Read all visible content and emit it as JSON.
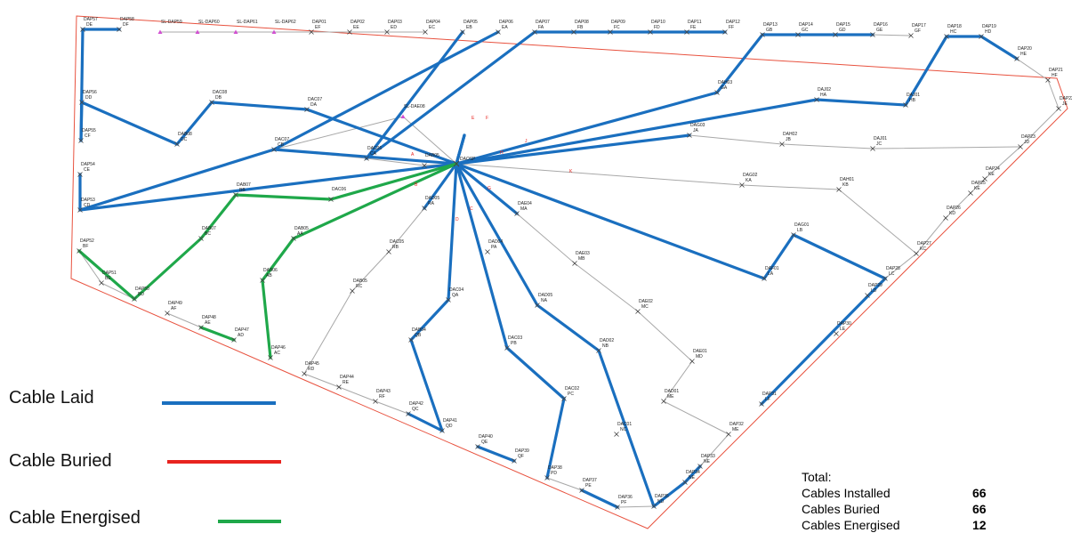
{
  "legend": {
    "laid": "Cable Laid",
    "buried": "Cable Buried",
    "energised": "Cable Energised"
  },
  "totals": {
    "title": "Total:",
    "installed_label": "Cables Installed",
    "installed_value": "66",
    "buried_label": "Cables Buried",
    "buried_value": "66",
    "energised_label": "Cables Energised",
    "energised_value": "12"
  },
  "colors": {
    "laid": "#1a6fbf",
    "buried": "#e8231f",
    "energised": "#1fa84a",
    "unlaid": "#a8a8a8",
    "boundary": "#e8523f",
    "marker": "#444444",
    "sl_marker": "#d24fd2"
  },
  "hub": {
    "name": "DAOSP"
  },
  "nodes": [
    {
      "n": "DAP57",
      "c": "DE"
    },
    {
      "n": "DAP58",
      "c": "DF"
    },
    {
      "n": "SL-DAP59",
      "c": ""
    },
    {
      "n": "SL-DAP60",
      "c": ""
    },
    {
      "n": "SL-DAP61",
      "c": ""
    },
    {
      "n": "SL-DAP62",
      "c": ""
    },
    {
      "n": "DAP01",
      "c": "EF"
    },
    {
      "n": "DAP02",
      "c": "EE"
    },
    {
      "n": "DAP03",
      "c": "ED"
    },
    {
      "n": "DAP04",
      "c": "EC"
    },
    {
      "n": "DAP05",
      "c": "EB"
    },
    {
      "n": "DAP06",
      "c": "EA"
    },
    {
      "n": "DAP07",
      "c": "FA"
    },
    {
      "n": "DAP08",
      "c": "FB"
    },
    {
      "n": "DAP09",
      "c": "FC"
    },
    {
      "n": "DAP10",
      "c": "FD"
    },
    {
      "n": "DAP11",
      "c": "FE"
    },
    {
      "n": "DAP12",
      "c": "FF"
    },
    {
      "n": "DAP13",
      "c": "GB"
    },
    {
      "n": "DAP14",
      "c": "GC"
    },
    {
      "n": "DAP15",
      "c": "GD"
    },
    {
      "n": "DAP16",
      "c": "GE"
    },
    {
      "n": "DAP17",
      "c": "GF"
    },
    {
      "n": "DAP18",
      "c": "HC"
    },
    {
      "n": "DAP19",
      "c": "HD"
    },
    {
      "n": "DAP20",
      "c": "HE"
    },
    {
      "n": "DAP21",
      "c": "HF"
    },
    {
      "n": "DAP22",
      "c": "JE"
    },
    {
      "n": "DAP23",
      "c": "JD"
    },
    {
      "n": "DAP24",
      "c": "KE"
    },
    {
      "n": "DAP25",
      "c": "KE"
    },
    {
      "n": "DAP26",
      "c": "KD"
    },
    {
      "n": "DAP27",
      "c": "KC"
    },
    {
      "n": "DAP28",
      "c": "LC"
    },
    {
      "n": "DAP29",
      "c": "LD"
    },
    {
      "n": "DAP30",
      "c": "LE"
    },
    {
      "n": "DAP31",
      "c": "LF"
    },
    {
      "n": "DAP32",
      "c": "ME"
    },
    {
      "n": "DAP33",
      "c": "NE"
    },
    {
      "n": "DAP34",
      "c": "NE"
    },
    {
      "n": "DAP35",
      "c": "ND"
    },
    {
      "n": "DAP36",
      "c": "PF"
    },
    {
      "n": "DAP37",
      "c": "PE"
    },
    {
      "n": "DAP38",
      "c": "PD"
    },
    {
      "n": "DAP39",
      "c": "QF"
    },
    {
      "n": "DAP40",
      "c": "QE"
    },
    {
      "n": "DAP41",
      "c": "QD"
    },
    {
      "n": "DAP42",
      "c": "QC"
    },
    {
      "n": "DAP43",
      "c": "RF"
    },
    {
      "n": "DAP44",
      "c": "RE"
    },
    {
      "n": "DAP45",
      "c": "RD"
    },
    {
      "n": "DAP46",
      "c": "AC"
    },
    {
      "n": "DAP47",
      "c": "AD"
    },
    {
      "n": "DAP48",
      "c": "AE"
    },
    {
      "n": "DAP49",
      "c": "AF"
    },
    {
      "n": "DAP50",
      "c": "BD"
    },
    {
      "n": "DAP51",
      "c": "BE"
    },
    {
      "n": "DAP52",
      "c": "BF"
    },
    {
      "n": "DAP53",
      "c": "CD"
    },
    {
      "n": "DAP54",
      "c": "CE"
    },
    {
      "n": "DAP55",
      "c": "CF"
    },
    {
      "n": "DAP56",
      "c": "DD"
    },
    {
      "n": "DAC08",
      "c": "DB"
    },
    {
      "n": "DAC07",
      "c": "DA"
    },
    {
      "n": "DAB08",
      "c": "DC"
    },
    {
      "n": "SL-DAE08",
      "c": ""
    },
    {
      "n": "DAC07",
      "c": "CB"
    },
    {
      "n": "DAC06",
      "c": "CA"
    },
    {
      "n": "DAB05",
      "c": ""
    },
    {
      "n": "DAB07",
      "c": "BB"
    },
    {
      "n": "DAC06",
      "c": ""
    },
    {
      "n": "DAB07",
      "c": "BC"
    },
    {
      "n": "DAB05",
      "c": "AA"
    },
    {
      "n": "DAB06",
      "c": "AB"
    },
    {
      "n": "DAD05",
      "c": "RA"
    },
    {
      "n": "DAC05",
      "c": "RB"
    },
    {
      "n": "DAB05",
      "c": "RC"
    },
    {
      "n": "DAE04",
      "c": "MA"
    },
    {
      "n": "DAD04",
      "c": "PA"
    },
    {
      "n": "DAE03",
      "c": "MB"
    },
    {
      "n": "DAD05",
      "c": "NA"
    },
    {
      "n": "DAC04",
      "c": "QA"
    },
    {
      "n": "DAB04",
      "c": "QB"
    },
    {
      "n": "DAC03",
      "c": "PB"
    },
    {
      "n": "DAD02",
      "c": "NB"
    },
    {
      "n": "DAE02",
      "c": "MC"
    },
    {
      "n": "DAE01",
      "c": "MD"
    },
    {
      "n": "DAD01",
      "c": "ME"
    },
    {
      "n": "DAC02",
      "c": "PC"
    },
    {
      "n": "DAC01",
      "c": "NC"
    },
    {
      "n": "DAH03",
      "c": "GA"
    },
    {
      "n": "DAJ02",
      "c": "HA"
    },
    {
      "n": "DAJ01",
      "c": "HB"
    },
    {
      "n": "DAG03",
      "c": "JA"
    },
    {
      "n": "DAH02",
      "c": "JB"
    },
    {
      "n": "DAJ01",
      "c": "JC"
    },
    {
      "n": "DAG02",
      "c": "KA"
    },
    {
      "n": "DAH01",
      "c": "KB"
    },
    {
      "n": "DAG01",
      "c": "LB"
    },
    {
      "n": "DAF01",
      "c": "LA"
    }
  ],
  "ray_letters": [
    "E",
    "F",
    "J",
    "K",
    "H",
    "G",
    "A",
    "B",
    "D",
    "C"
  ]
}
